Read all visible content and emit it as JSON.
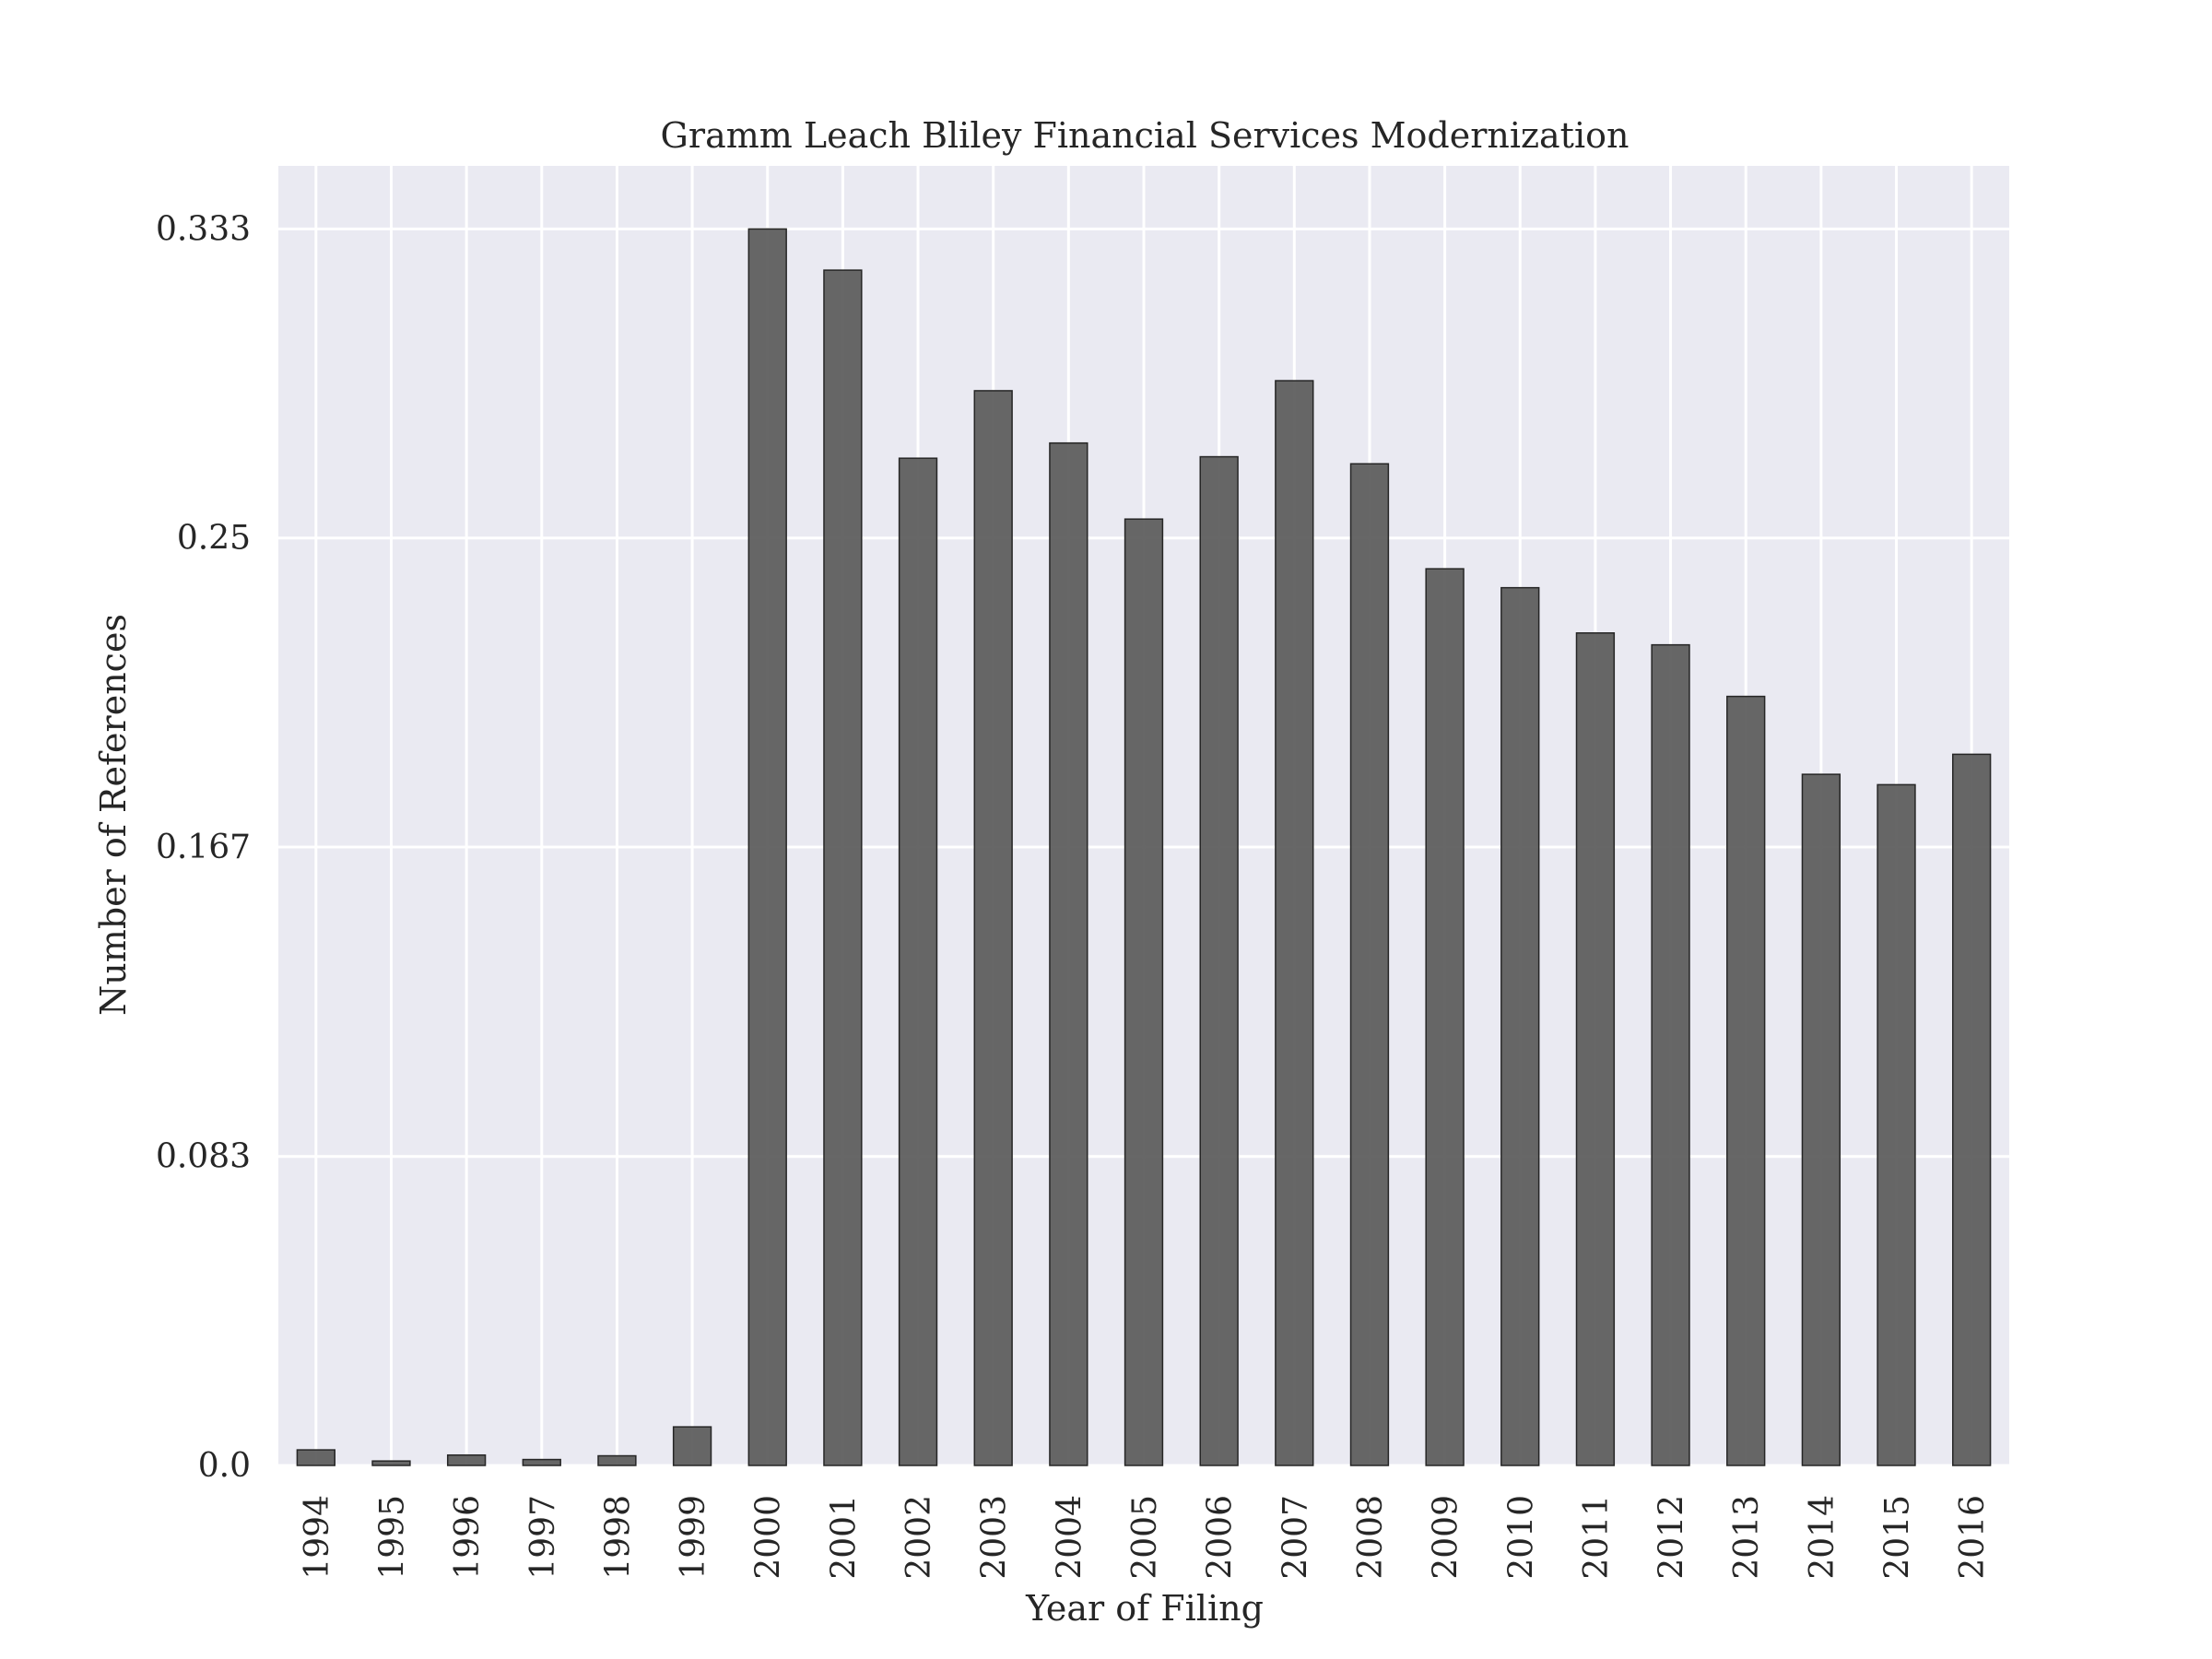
{
  "chart_data": {
    "type": "bar",
    "title": "Gramm Leach Bliley Financial Services Modernization",
    "xlabel": "Year of Filing",
    "ylabel": "Number of References",
    "categories": [
      "1994",
      "1995",
      "1996",
      "1997",
      "1998",
      "1999",
      "2000",
      "2001",
      "2002",
      "2003",
      "2004",
      "2005",
      "2006",
      "2007",
      "2008",
      "2009",
      "2010",
      "2011",
      "2012",
      "2013",
      "2014",
      "2015",
      "2016"
    ],
    "values": [
      0.0042,
      0.0012,
      0.0028,
      0.0016,
      0.0026,
      0.0104,
      0.3333,
      0.3222,
      0.2715,
      0.2897,
      0.2756,
      0.2551,
      0.2719,
      0.2924,
      0.27,
      0.2417,
      0.2366,
      0.2244,
      0.2212,
      0.2073,
      0.1863,
      0.1835,
      0.1917
    ],
    "yticks": [
      "0.0",
      "0.083",
      "0.167",
      "0.25",
      "0.333"
    ],
    "ytick_values": [
      0,
      0.0833,
      0.1667,
      0.25,
      0.3333
    ],
    "ylim": [
      0,
      0.3503
    ],
    "grid": true,
    "colors": {
      "bar_fill": "#5a5a5a",
      "bar_edge": "#262626",
      "plot_background": "#eaeaf2",
      "grid": "#ffffff"
    }
  }
}
